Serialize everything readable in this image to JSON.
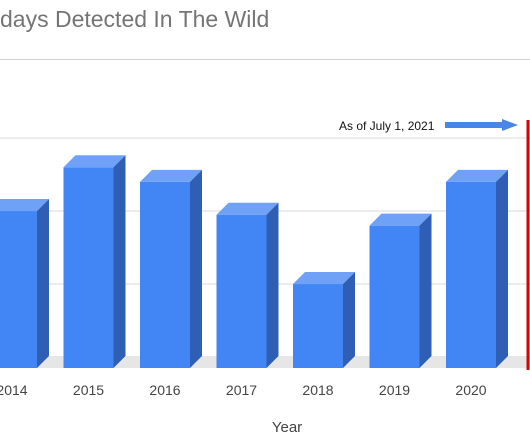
{
  "title": "days Detected In The Wild",
  "colors": {
    "bar_front": "#4285f4",
    "bar_top": "#6fa2f7",
    "bar_side": "#2f5fb5",
    "floor": "#e6e6e6",
    "gridline": "#d9d9d9",
    "marker_line": "#e00000",
    "arrow": "#4a86e8"
  },
  "chart_data": {
    "type": "bar",
    "title": "days Detected In The Wild",
    "xlabel": "Year",
    "ylabel": "",
    "categories": [
      "2014",
      "2015",
      "2016",
      "2017",
      "2018",
      "2019",
      "2020"
    ],
    "values": [
      21.5,
      27.5,
      25.5,
      21,
      11.5,
      19.5,
      25.5
    ],
    "ylim": [
      0,
      30
    ],
    "grid": true,
    "legend": "none",
    "annotations": [
      {
        "text": "As of July 1, 2021",
        "style": "arrow pointing to vertical red marker line"
      }
    ]
  }
}
